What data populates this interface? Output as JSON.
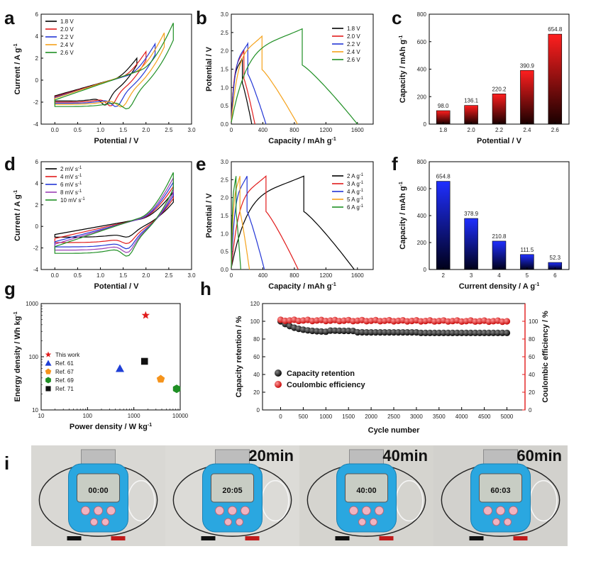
{
  "chart_data": [
    {
      "panel": "a",
      "type": "line",
      "xlabel": "Potential / V",
      "ylabel": "Current / A g",
      "ylabel_sup": "-1",
      "xlim": [
        -0.3,
        3.0
      ],
      "ylim": [
        -4,
        6
      ],
      "xticks": [
        "0.0",
        "0.5",
        "1.0",
        "1.5",
        "2.0",
        "2.5",
        "3.0"
      ],
      "yticks": [
        "-4",
        "-2",
        "0",
        "2",
        "4",
        "6"
      ],
      "legend": "top-left",
      "series": [
        {
          "name": "1.8  V",
          "color": "#000000",
          "vmax": 1.8,
          "imax": 2.0,
          "imin": -1.9
        },
        {
          "name": "2.0  V",
          "color": "#e11b1b",
          "vmax": 2.0,
          "imax": 2.6,
          "imin": -2.0
        },
        {
          "name": "2.2  V",
          "color": "#2336d6",
          "vmax": 2.2,
          "imax": 3.3,
          "imin": -2.1
        },
        {
          "name": "2.4  V",
          "color": "#f5a21b",
          "vmax": 2.4,
          "imax": 4.3,
          "imin": -2.2
        },
        {
          "name": "2.6  V",
          "color": "#1f8f24",
          "vmax": 2.6,
          "imax": 5.2,
          "imin": -2.4
        }
      ]
    },
    {
      "panel": "b",
      "type": "line",
      "xlabel": "Capacity / mAh g",
      "xlabel_sup": "-1",
      "ylabel": "Potential / V",
      "xlim": [
        0,
        1800
      ],
      "ylim": [
        0,
        3.0
      ],
      "xticks": [
        "0",
        "400",
        "800",
        "1200",
        "1600"
      ],
      "yticks": [
        "0.0",
        "0.5",
        "1.0",
        "1.5",
        "2.0",
        "2.5",
        "3.0"
      ],
      "legend": "top-right",
      "series": [
        {
          "name": "1.8  V",
          "color": "#000000",
          "vmax": 1.8,
          "qchg": 140,
          "qend": 260
        },
        {
          "name": "2.0  V",
          "color": "#e11b1b",
          "vmax": 2.0,
          "qchg": 160,
          "qend": 300
        },
        {
          "name": "2.2  V",
          "color": "#2336d6",
          "vmax": 2.2,
          "qchg": 210,
          "qend": 440
        },
        {
          "name": "2.4  V",
          "color": "#f5a21b",
          "vmax": 2.4,
          "qchg": 390,
          "qend": 840
        },
        {
          "name": "2.6  V",
          "color": "#1f8f24",
          "vmax": 2.6,
          "qchg": 900,
          "qend": 1600
        }
      ]
    },
    {
      "panel": "c",
      "type": "bar",
      "xlabel": "Potential / V",
      "ylabel": "Capacity / mAh g",
      "ylabel_sup": "-1",
      "ylim": [
        0,
        800
      ],
      "yticks": [
        "0",
        "200",
        "400",
        "600",
        "800"
      ],
      "categories": [
        "1.8",
        "2.0",
        "2.2",
        "2.4",
        "2.6"
      ],
      "values": [
        98.0,
        136.1,
        220.2,
        390.9,
        654.8
      ],
      "labels": [
        "98.0",
        "136.1",
        "220.2",
        "390.9",
        "654.8"
      ],
      "colors": {
        "top": "#ff1f1f",
        "bottom": "#1a0000"
      }
    },
    {
      "panel": "d",
      "type": "line",
      "xlabel": "Potential / V",
      "ylabel": "Current / A g",
      "ylabel_sup": "-1",
      "xlim": [
        -0.3,
        3.0
      ],
      "ylim": [
        -4,
        6
      ],
      "xticks": [
        "0.0",
        "0.5",
        "1.0",
        "1.5",
        "2.0",
        "2.5",
        "3.0"
      ],
      "yticks": [
        "-4",
        "-2",
        "0",
        "2",
        "4",
        "6"
      ],
      "legend": "top-left",
      "series": [
        {
          "name": "2  mV s",
          "sup": "-1",
          "color": "#000000",
          "imax": 3.2,
          "imin": -1.0
        },
        {
          "name": "4  mV s",
          "sup": "-1",
          "color": "#e11b1b",
          "imax": 3.7,
          "imin": -1.5
        },
        {
          "name": "6  mV s",
          "sup": "-1",
          "color": "#2336d6",
          "imax": 4.1,
          "imin": -1.9
        },
        {
          "name": "8  mV s",
          "sup": "-1",
          "color": "#9b3fb5",
          "imax": 4.5,
          "imin": -2.2
        },
        {
          "name": "10  mV s",
          "sup": "-1",
          "color": "#1f8f24",
          "imax": 5.0,
          "imin": -2.5
        }
      ]
    },
    {
      "panel": "e",
      "type": "line",
      "xlabel": "Capacity / mAh g",
      "xlabel_sup": "-1",
      "ylabel": "Potential / V",
      "xlim": [
        0,
        1800
      ],
      "ylim": [
        0,
        3.0
      ],
      "xticks": [
        "0",
        "400",
        "800",
        "1200",
        "1600"
      ],
      "yticks": [
        "0.0",
        "0.5",
        "1.0",
        "1.5",
        "2.0",
        "2.5",
        "3.0"
      ],
      "legend": "top-right",
      "series": [
        {
          "name": "2  A g",
          "sup": "-1",
          "color": "#000000",
          "qchg": 920,
          "qend": 1560
        },
        {
          "name": "3  A g",
          "sup": "-1",
          "color": "#e11b1b",
          "qchg": 440,
          "qend": 850
        },
        {
          "name": "4  A g",
          "sup": "-1",
          "color": "#2336d6",
          "qchg": 200,
          "qend": 420
        },
        {
          "name": "5  A g",
          "sup": "-1",
          "color": "#f5a21b",
          "qchg": 110,
          "qend": 230
        },
        {
          "name": "6  A g",
          "sup": "-1",
          "color": "#1f8f24",
          "qchg": 60,
          "qend": 120
        }
      ]
    },
    {
      "panel": "f",
      "type": "bar",
      "xlabel": "Current density / A g",
      "xlabel_sup": "-1",
      "ylabel": "Capacity / mAh g",
      "ylabel_sup": "-1",
      "ylim": [
        0,
        800
      ],
      "yticks": [
        "0",
        "200",
        "400",
        "600",
        "800"
      ],
      "categories": [
        "2",
        "3",
        "4",
        "5",
        "6"
      ],
      "values": [
        654.8,
        378.9,
        210.8,
        111.5,
        52.3
      ],
      "labels": [
        "654.8",
        "378.9",
        "210.8",
        "111.5",
        "52.3"
      ],
      "colors": {
        "top": "#1f2fff",
        "bottom": "#00001a"
      }
    },
    {
      "panel": "g",
      "type": "scatter",
      "xscale": "log",
      "yscale": "log",
      "xlabel": "Power density / W kg",
      "xlabel_sup": "-1",
      "ylabel": "Energy density / Wh kg",
      "ylabel_sup": "-1",
      "xlim": [
        10,
        10000
      ],
      "ylim": [
        10,
        1000
      ],
      "xticks": [
        {
          "v": 10,
          "t": "10"
        },
        {
          "v": 100,
          "t": "100"
        },
        {
          "v": 1000,
          "t": "1000"
        },
        {
          "v": 10000,
          "t": "10000"
        }
      ],
      "yticks": [
        {
          "v": 10,
          "t": "10"
        },
        {
          "v": 100,
          "t": "100"
        },
        {
          "v": 1000,
          "t": "1000"
        }
      ],
      "legend": "left",
      "points": [
        {
          "name": "This work",
          "x": 1800,
          "y": 600,
          "color": "#e11b1b",
          "marker": "star"
        },
        {
          "name": "Ref. 61",
          "x": 500,
          "y": 60,
          "color": "#1f3fd6",
          "marker": "triangle"
        },
        {
          "name": "Ref. 67",
          "x": 3800,
          "y": 38,
          "color": "#f5931b",
          "marker": "pentagon"
        },
        {
          "name": "Ref. 69",
          "x": 12000,
          "y": 25,
          "color": "#1f8f24",
          "marker": "hexagon"
        },
        {
          "name": "Ref. 71",
          "x": 1700,
          "y": 82,
          "color": "#111111",
          "marker": "square"
        }
      ]
    },
    {
      "panel": "h",
      "type": "scatter",
      "xlabel": "Cycle number",
      "ylabel": "Capacity retention / %",
      "ylabel_right": "Coulombic efficiency / %",
      "xlim": [
        -400,
        5400
      ],
      "ylim": [
        0,
        120
      ],
      "xticks": [
        0,
        500,
        1000,
        1500,
        2000,
        2500,
        3000,
        3500,
        4000,
        4500,
        5000
      ],
      "yticks": [
        0,
        20,
        40,
        60,
        80,
        100,
        120
      ],
      "yticks_right": [
        0,
        20,
        40,
        60,
        80,
        100
      ],
      "legend": "bottom-left",
      "series": [
        {
          "name": "Capacity retention",
          "color": "#111111",
          "axis": "left",
          "start": 100,
          "end": 87.5
        },
        {
          "name": "Coulombic efficiency",
          "color": "#e11b1b",
          "axis": "right",
          "start": 101,
          "end": 100
        }
      ]
    }
  ],
  "panel_labels": {
    "a": "a",
    "b": "b",
    "c": "c",
    "d": "d",
    "e": "e",
    "f": "f",
    "g": "g",
    "h": "h",
    "i": "i"
  },
  "photos": {
    "labels": [
      "",
      "20min",
      "40min",
      "60min"
    ],
    "timers": [
      "00:00",
      "20:05",
      "40:00",
      "60:03"
    ]
  }
}
